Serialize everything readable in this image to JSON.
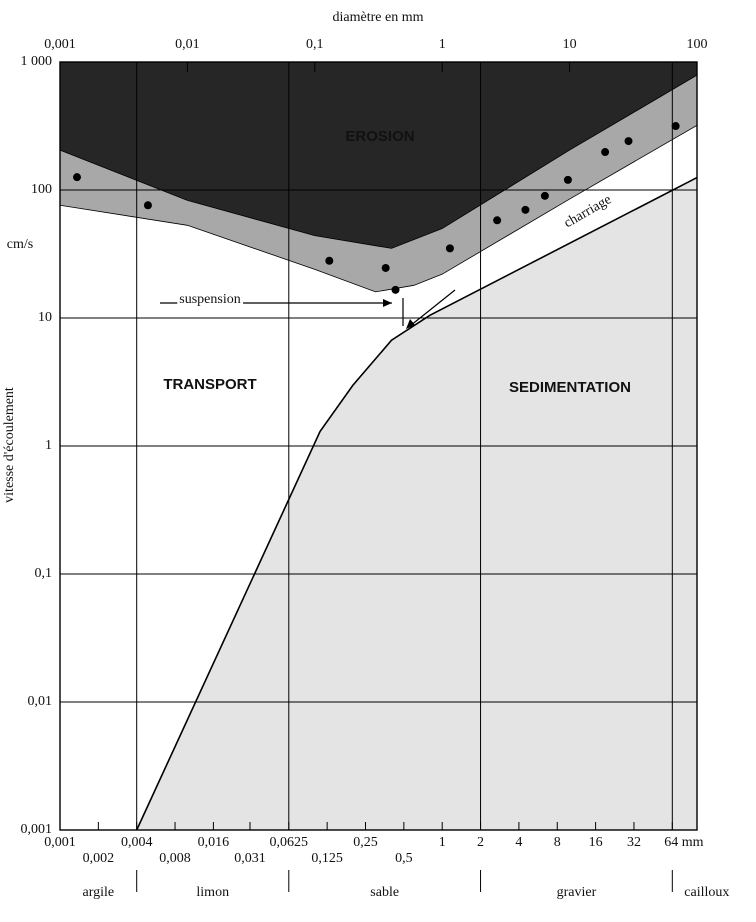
{
  "chart_data": {
    "type": "hjulstrom",
    "title": "diamètre en mm",
    "y_label": "vitesse d'écoulement",
    "y_unit": "cm/s",
    "log_x": true,
    "log_y": true,
    "xlim": [
      0.001,
      100
    ],
    "ylim": [
      0.001,
      1000
    ],
    "xticks": [
      {
        "value": 0.001,
        "label": "0,001"
      },
      {
        "value": 0.01,
        "label": "0,01"
      },
      {
        "value": 0.1,
        "label": "0,1"
      },
      1,
      10,
      100
    ],
    "yticks": [
      {
        "value": 0.001,
        "label": "0,001"
      },
      {
        "value": 0.01,
        "label": "0,01"
      },
      {
        "value": 0.1,
        "label": "0,1"
      },
      1,
      10,
      100,
      {
        "value": 1000,
        "label": "1 000"
      }
    ],
    "xticks_bottom": [
      {
        "value": 0.001,
        "label": "0,001"
      },
      {
        "value": 0.004,
        "label": "0,004"
      },
      {
        "value": 0.016,
        "label": "0,016"
      },
      {
        "value": 0.0625,
        "label": "0,0625"
      },
      {
        "value": 0.25,
        "label": "0,25"
      },
      1,
      2,
      4,
      8,
      16,
      32,
      {
        "value": 64,
        "label": "64 mm"
      }
    ],
    "xticks_bottom2": [
      {
        "value": 0.002,
        "label": "0,002"
      },
      {
        "value": 0.008,
        "label": "0,008"
      },
      {
        "value": 0.031,
        "label": "0,031"
      },
      {
        "value": 0.125,
        "label": "0,125"
      },
      {
        "value": 0.5,
        "label": "0,5"
      }
    ],
    "xgrid": [
      0.004,
      0.0625,
      2,
      64
    ],
    "classes": [
      "argile",
      "limon",
      "sable",
      "gravier",
      "cailloux"
    ],
    "annotations": [
      "EROSION",
      "TRANSPORT",
      "SEDIMENTATION",
      "charriage",
      "suspension"
    ],
    "curves": {
      "erosion_lower": {
        "color": "#a8a8a8",
        "x": [
          0.001,
          0.01,
          0.1,
          0.3,
          0.6,
          1,
          10,
          100
        ],
        "y": [
          76,
          53,
          24,
          16,
          18,
          22,
          85,
          320
        ]
      },
      "erosion_upper": {
        "color": "#262626",
        "x": [
          0.001,
          0.01,
          0.1,
          0.4,
          1,
          10,
          100
        ],
        "y": [
          205,
          83,
          44,
          35,
          50,
          205,
          790
        ]
      },
      "sedimentation": {
        "color": "#e4e4e4",
        "x": [
          0.004,
          0.11,
          0.2,
          0.4,
          0.8,
          100
        ],
        "y": [
          0.001,
          1.3,
          3,
          6.7,
          10.5,
          125
        ]
      }
    },
    "points": {
      "color": "#000000",
      "x": [
        0.00136,
        0.0049,
        0.13,
        0.36,
        0.43,
        1.15,
        2.7,
        4.5,
        6.4,
        9.7,
        19,
        29,
        68
      ],
      "y": [
        126,
        76,
        28,
        24.6,
        16.6,
        35,
        58,
        70,
        90,
        120,
        198,
        241,
        316
      ]
    }
  }
}
